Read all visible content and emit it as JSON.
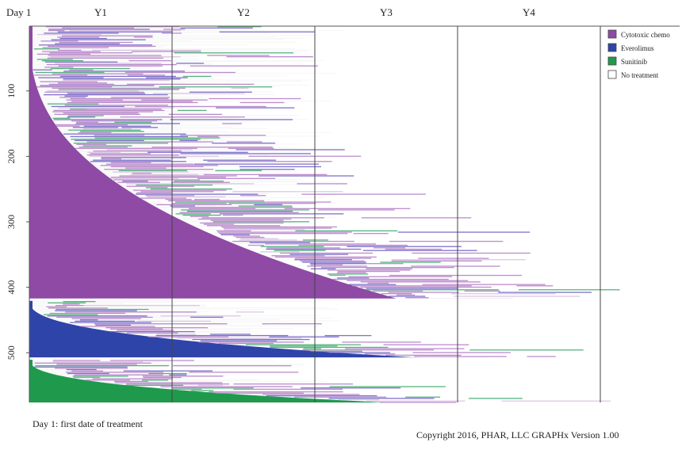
{
  "chart_data": {
    "type": "swimmer",
    "day_label": "Day 1",
    "x_period_labels": [
      "Y1",
      "Y2",
      "Y3",
      "Y4"
    ],
    "y_ticks": [
      100,
      200,
      300,
      400,
      500
    ],
    "n_patients": 575,
    "legend": [
      {
        "name": "Cytotoxic chemo",
        "color": "#8e4aa5"
      },
      {
        "name": "Everolimus",
        "color": "#2f44a8"
      },
      {
        "name": "Sunitinib",
        "color": "#1f9a4d"
      },
      {
        "name": "No treatment",
        "color": "#ffffff"
      }
    ],
    "groups": [
      {
        "name": "Cytotoxic chemo",
        "first_patient": 1,
        "last_patient": 418,
        "max_first_line_years": 2.6
      },
      {
        "name": "Everolimus",
        "first_patient": 419,
        "last_patient": 508,
        "max_first_line_years": 2.85
      },
      {
        "name": "Sunitinib",
        "first_patient": 509,
        "last_patient": 575,
        "max_first_line_years": 2.5
      }
    ],
    "grid": true,
    "legend_position": "top-right"
  },
  "footer": {
    "note": "Day 1: first date of treatment",
    "copyright": "Copyright 2016, PHAR, LLC GRAPHx Version 1.00"
  }
}
